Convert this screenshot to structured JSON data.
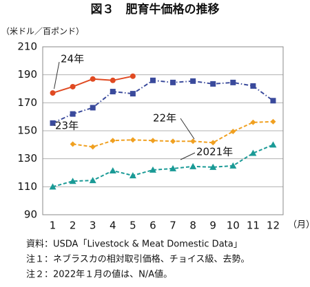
{
  "chart_data": {
    "type": "line",
    "title": "図３　肥育牛価格の推移",
    "y_label": "（米ドル／百ポンド）",
    "x_unit": "（月）",
    "categories": [
      "1",
      "2",
      "3",
      "4",
      "5",
      "6",
      "7",
      "8",
      "9",
      "10",
      "11",
      "12"
    ],
    "ylim": [
      90,
      210
    ],
    "yticks": [
      90,
      110,
      130,
      150,
      170,
      190,
      210
    ],
    "grid": true,
    "series": [
      {
        "name": "24年",
        "color": "#e04a22",
        "line_style": "solid",
        "marker": "circle",
        "values": [
          177,
          181.5,
          187,
          186,
          189,
          null,
          null,
          null,
          null,
          null,
          null,
          null
        ]
      },
      {
        "name": "23年",
        "color": "#3a4a9c",
        "line_style": "dashdot",
        "marker": "square",
        "values": [
          155.5,
          162,
          166.5,
          178,
          176.5,
          186,
          184.5,
          185.5,
          183.5,
          184.5,
          182,
          171.5
        ]
      },
      {
        "name": "22年",
        "color": "#f0a020",
        "line_style": "dashed",
        "marker": "diamond",
        "values": [
          null,
          140.5,
          138.5,
          143,
          143.5,
          143,
          142.5,
          142.5,
          141.5,
          149.5,
          156,
          156.5
        ]
      },
      {
        "name": "2021年",
        "color": "#1a9a96",
        "line_style": "dashed",
        "marker": "triangle",
        "values": [
          110,
          114,
          114.5,
          121.5,
          118,
          122,
          123,
          124.5,
          124,
          125,
          134,
          140
        ]
      }
    ],
    "notes": [
      "資料：USDA「Livestock & Meat Domestic Data」",
      "注１：ネブラスカの相対取引価格、チョイス級、去勢。",
      "注２：2022年１月の値は、N/A値。"
    ]
  }
}
